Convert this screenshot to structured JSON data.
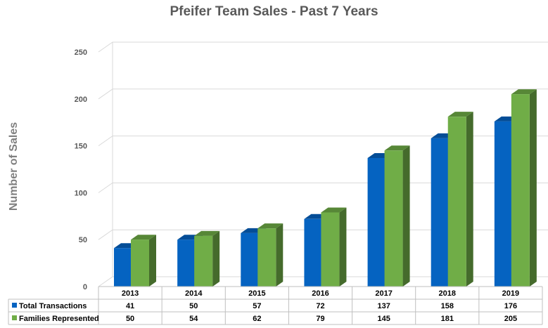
{
  "chart_data": {
    "type": "bar",
    "title": "Pfeifer Team Sales - Past 7 Years",
    "ylabel": "Number of Sales",
    "xlabel": "",
    "categories": [
      "2013",
      "2014",
      "2015",
      "2016",
      "2017",
      "2018",
      "2019"
    ],
    "series": [
      {
        "name": "Total Transactions",
        "values": [
          41,
          50,
          57,
          72,
          137,
          158,
          176
        ],
        "color": "#0563c1"
      },
      {
        "name": "Families Represented",
        "values": [
          50,
          54,
          62,
          79,
          145,
          181,
          205
        ],
        "color": "#70ad47"
      }
    ],
    "ylim": [
      0,
      250
    ],
    "yticks": [
      0,
      50,
      100,
      150,
      200,
      250
    ],
    "grid": true,
    "style": "3d clustered column",
    "legend": "data table below chart"
  }
}
